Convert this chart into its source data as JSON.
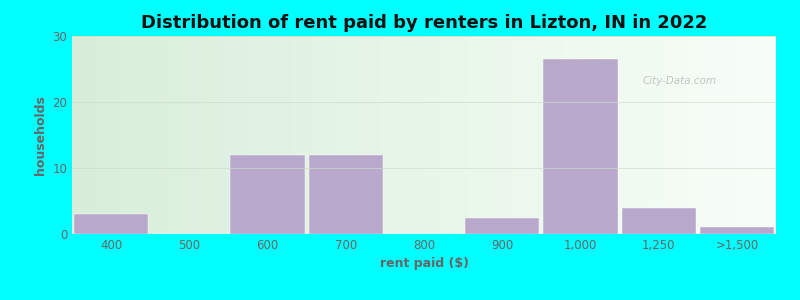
{
  "title": "Distribution of rent paid by renters in Lizton, IN in 2022",
  "xlabel": "rent paid ($)",
  "ylabel": "households",
  "bar_labels": [
    "400",
    "500",
    "600",
    "700",
    "800",
    "900",
    "1,000",
    "1,250",
    ">1,500"
  ],
  "bar_values": [
    3,
    0,
    12,
    12,
    0,
    2.5,
    26.5,
    4,
    1
  ],
  "bar_color": "#b8a8cc",
  "outer_bg": "#00ffff",
  "plot_bg_left": "#d8eeda",
  "plot_bg_right": "#f5faf5",
  "ylim": [
    0,
    30
  ],
  "yticks": [
    0,
    10,
    20,
    30
  ],
  "title_fontsize": 13,
  "axis_label_fontsize": 9,
  "tick_fontsize": 8.5,
  "tick_color": "#666666",
  "title_color": "#111111",
  "grid_color": "#ccddcc",
  "watermark_text": "City-Data.com",
  "watermark_color": "#bbbbbb"
}
